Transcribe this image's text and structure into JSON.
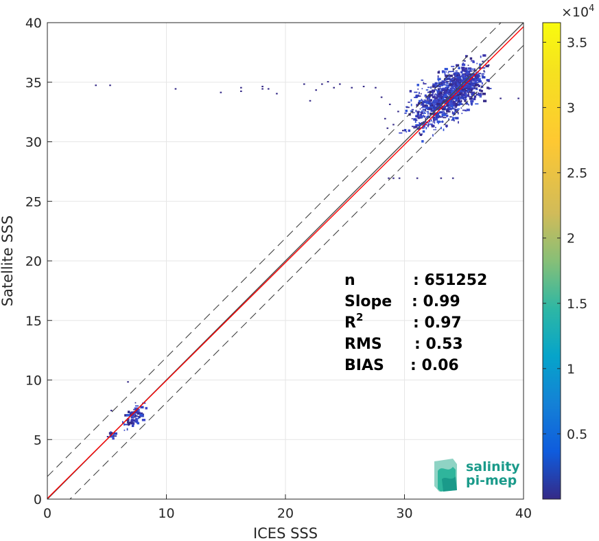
{
  "chart_data": {
    "type": "heatmap",
    "xlabel": "ICES SSS",
    "ylabel": "Satellite SSS",
    "xlim": [
      0,
      40
    ],
    "ylim": [
      0,
      40
    ],
    "xticks": [
      "0",
      "10",
      "20",
      "30",
      "40"
    ],
    "yticks": [
      "0",
      "5",
      "10",
      "15",
      "20",
      "25",
      "30",
      "35",
      "40"
    ],
    "grid": true,
    "colorbar": {
      "colormap": "parula",
      "range": [
        0,
        36500
      ],
      "ticks": [
        "0.5",
        "1",
        "1.5",
        "2",
        "2.5",
        "3",
        "3.5"
      ],
      "tick_values": [
        5000,
        10000,
        15000,
        20000,
        25000,
        30000,
        35000
      ],
      "exponent_label": "×10",
      "exponent": "4"
    },
    "lines": [
      {
        "name": "one-to-one",
        "color": "#4a4a4a",
        "style": "solid",
        "points": [
          [
            0,
            0
          ],
          [
            40,
            40
          ]
        ]
      },
      {
        "name": "regression",
        "color": "#ff0000",
        "style": "solid",
        "points": [
          [
            0,
            0.06
          ],
          [
            40,
            39.66
          ]
        ]
      },
      {
        "name": "upper-bound",
        "color": "#333333",
        "style": "dashed",
        "points": [
          [
            0,
            1.9
          ],
          [
            40,
            41.9
          ]
        ]
      },
      {
        "name": "lower-bound",
        "color": "#333333",
        "style": "dashed",
        "points": [
          [
            0,
            -1.9
          ],
          [
            40,
            38.1
          ]
        ]
      }
    ],
    "density_clusters": [
      {
        "x_center": 33.5,
        "y_center": 33.8,
        "x_spread": 1.4,
        "y_spread": 1.0,
        "count": 900
      },
      {
        "x_center": 35.0,
        "y_center": 35.0,
        "x_spread": 0.6,
        "y_spread": 0.5,
        "count": 220
      },
      {
        "x_center": 7.2,
        "y_center": 7.0,
        "x_spread": 0.4,
        "y_spread": 0.4,
        "count": 90
      },
      {
        "x_center": 5.4,
        "y_center": 5.5,
        "x_spread": 0.15,
        "y_spread": 0.2,
        "count": 14
      }
    ],
    "scatter_points": [
      [
        4.0,
        34.8
      ],
      [
        5.2,
        34.8
      ],
      [
        10.7,
        34.5
      ],
      [
        14.5,
        34.2
      ],
      [
        16.2,
        34.6
      ],
      [
        16.2,
        34.3
      ],
      [
        18.0,
        34.5
      ],
      [
        18.0,
        34.7
      ],
      [
        18.5,
        34.5
      ],
      [
        19.2,
        34.1
      ],
      [
        21.5,
        34.9
      ],
      [
        22.0,
        33.5
      ],
      [
        22.5,
        34.4
      ],
      [
        23.0,
        34.9
      ],
      [
        23.5,
        35.1
      ],
      [
        24.0,
        34.6
      ],
      [
        24.5,
        34.9
      ],
      [
        25.5,
        34.6
      ],
      [
        26.5,
        34.7
      ],
      [
        27.5,
        34.6
      ],
      [
        28.0,
        33.8
      ],
      [
        28.3,
        32.0
      ],
      [
        28.7,
        33.2
      ],
      [
        29.0,
        31.5
      ],
      [
        29.4,
        32.6
      ],
      [
        28.5,
        31.2
      ],
      [
        29.8,
        31.0
      ],
      [
        28.6,
        27.0
      ],
      [
        29.0,
        27.0
      ],
      [
        29.5,
        27.0
      ],
      [
        31.0,
        27.0
      ],
      [
        33.0,
        27.0
      ],
      [
        34.0,
        27.0
      ],
      [
        35.5,
        34.2
      ],
      [
        36.0,
        34.0
      ],
      [
        36.5,
        36.8
      ],
      [
        37.0,
        36.5
      ],
      [
        39.5,
        33.7
      ],
      [
        38.0,
        33.7
      ],
      [
        6.7,
        9.9
      ],
      [
        5.3,
        7.5
      ],
      [
        5.0,
        5.3
      ]
    ]
  },
  "stats": [
    {
      "label": "n",
      "value": ": 651252"
    },
    {
      "label": "Slope",
      "value": ": 0.99"
    },
    {
      "label": "R",
      "sup": "2",
      "value": ": 0.97"
    },
    {
      "label": "RMS",
      "value": ": 0.53"
    },
    {
      "label": "BIAS",
      "value": ": 0.06"
    }
  ],
  "logo": {
    "line1": "salinity",
    "line2": "pi-mep",
    "colors": [
      "#1a9a8a",
      "#2fb59c",
      "#8fd3c4"
    ]
  }
}
